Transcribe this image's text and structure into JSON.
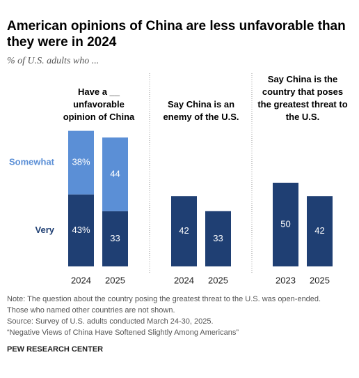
{
  "title": "American opinions of China are less unfavorable than they were in 2024",
  "subtitle": "% of U.S. adults who ...",
  "note": "Note: The question about the country posing the greatest threat to the U.S. was open-ended. Those who named other countries are not shown.",
  "source": "Source: Survey of U.S. adults conducted March 24-30, 2025.",
  "report": "“Negative Views of China Have Softened Slightly Among Americans”",
  "organization": "PEW RESEARCH CENTER",
  "chart_data": [
    {
      "type": "stacked_bar",
      "title": "Have a __ unfavorable opinion of China",
      "categories": [
        "2024",
        "2025"
      ],
      "series": [
        {
          "name": "Very",
          "color": "#1f3f73",
          "values": [
            43,
            33
          ],
          "value_labels": [
            "43%",
            "33"
          ]
        },
        {
          "name": "Somewhat",
          "color": "#5b8fd6",
          "values": [
            38,
            44
          ],
          "value_labels": [
            "38%",
            "44"
          ]
        }
      ]
    },
    {
      "type": "bar",
      "title": "Say China is an enemy of the U.S.",
      "categories": [
        "2024",
        "2025"
      ],
      "values": [
        42,
        33
      ],
      "color": "#1f3f73"
    },
    {
      "type": "bar",
      "title": "Say China is the country that poses the greatest threat to the U.S.",
      "categories": [
        "2023",
        "2025"
      ],
      "values": [
        50,
        42
      ],
      "color": "#1f3f73"
    }
  ]
}
